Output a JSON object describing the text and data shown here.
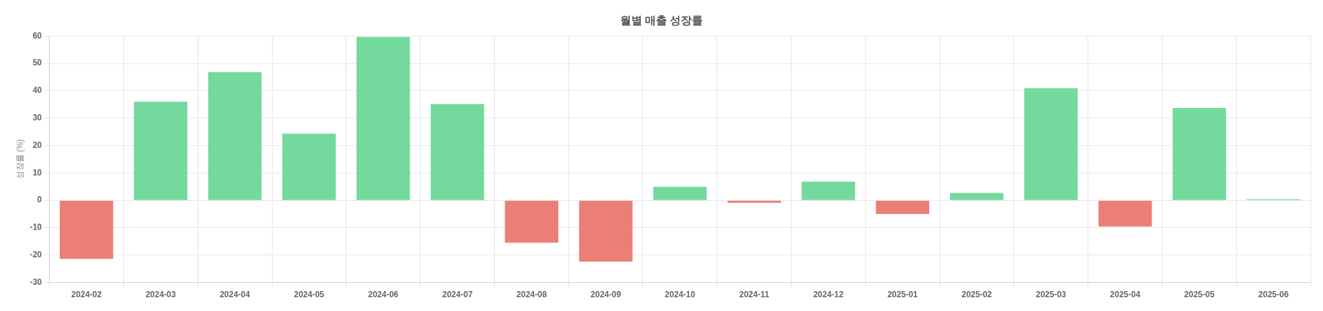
{
  "chart_data": {
    "type": "bar",
    "title": "월별 매출 성장률",
    "ylabel": "성장률 (%)",
    "categories": [
      "2024-02",
      "2024-03",
      "2024-04",
      "2024-05",
      "2024-06",
      "2024-07",
      "2024-08",
      "2024-09",
      "2024-10",
      "2024-11",
      "2024-12",
      "2025-01",
      "2025-02",
      "2025-03",
      "2025-04",
      "2025-05",
      "2025-06"
    ],
    "values": [
      -21.4,
      36.0,
      46.8,
      24.3,
      59.6,
      35.1,
      -15.5,
      -22.4,
      4.9,
      -0.9,
      6.8,
      -5.0,
      2.7,
      40.9,
      -9.6,
      33.7,
      0.4
    ],
    "colors": [
      "#ec7f75",
      "#74d99c",
      "#74d99c",
      "#74d99c",
      "#74d99c",
      "#74d99c",
      "#ec7f75",
      "#ec7f75",
      "#74d99c",
      "#ec7f75",
      "#74d99c",
      "#ec7f75",
      "#74d99c",
      "#74d99c",
      "#ec7f75",
      "#74d99c",
      "#74d99c"
    ],
    "ylim": [
      -30,
      60
    ],
    "yticks": [
      -30,
      -20,
      -10,
      0,
      10,
      20,
      30,
      40,
      50,
      60
    ],
    "grid": true,
    "legend": false
  }
}
